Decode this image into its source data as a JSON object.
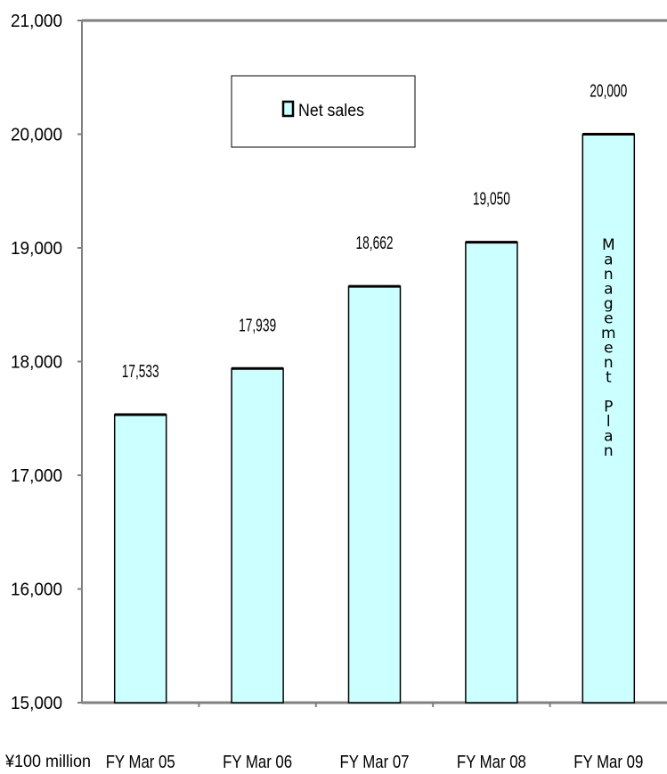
{
  "chart_data": {
    "type": "bar",
    "categories": [
      "FY Mar 05",
      "FY Mar 06",
      "FY Mar 07",
      "FY Mar 08",
      "FY Mar 09"
    ],
    "series": [
      {
        "name": "Net sales",
        "values": [
          17533,
          17939,
          18662,
          19050,
          20000
        ]
      }
    ],
    "data_labels": [
      "17,533",
      "17,939",
      "18,662",
      "19,050",
      "20,000"
    ],
    "y_tick_labels": [
      "15,000",
      "16,000",
      "17,000",
      "18,000",
      "19,000",
      "20,000",
      "21,000"
    ],
    "ylim": [
      15000,
      21000
    ],
    "unit_label": "¥100 million",
    "legend_position": "top-center",
    "annotation": {
      "category": "FY Mar 09",
      "text": "Management Plan"
    },
    "colors": {
      "bar_fill": "#ccffff",
      "bar_stroke": "#000000",
      "axis": "#808080"
    },
    "grid": false
  }
}
